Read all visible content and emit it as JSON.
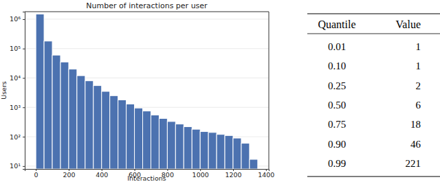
{
  "chart_data": {
    "type": "histogram",
    "title": "Number of interactions per user",
    "x_label": "Interactions",
    "y_label": "Users",
    "bins": [
      0,
      50,
      100,
      150,
      200,
      250,
      300,
      350,
      400,
      450,
      500,
      550,
      600,
      650,
      700,
      750,
      800,
      850,
      900,
      950,
      1000,
      1050,
      1100,
      1150,
      1200,
      1250,
      1300,
      1350
    ],
    "values": [
      1500000,
      180000,
      60000,
      35000,
      20000,
      12000,
      8000,
      5500,
      3500,
      2500,
      1800,
      1300,
      950,
      750,
      550,
      420,
      330,
      270,
      220,
      180,
      150,
      140,
      120,
      110,
      90,
      60,
      17
    ],
    "color": "#4c72b0",
    "xlim": [
      -67.5,
      1417.5
    ],
    "xticks": [
      0,
      200,
      400,
      600,
      800,
      1000,
      1200,
      1400
    ],
    "ylim": [
      8,
      1800000
    ],
    "yticks": [
      {
        "value": 10,
        "label": "10¹"
      },
      {
        "value": 100,
        "label": "10²"
      },
      {
        "value": 1000,
        "label": "10³"
      },
      {
        "value": 10000,
        "label": "10⁴"
      },
      {
        "value": 100000,
        "label": "10⁵"
      },
      {
        "value": 1000000,
        "label": "10⁶"
      }
    ],
    "log": "y",
    "grid": true
  },
  "table": {
    "columns": [
      "Quantile",
      "Value"
    ],
    "rows": [
      [
        "0.01",
        "1"
      ],
      [
        "0.10",
        "1"
      ],
      [
        "0.25",
        "2"
      ],
      [
        "0.50",
        "6"
      ],
      [
        "0.75",
        "18"
      ],
      [
        "0.90",
        "46"
      ],
      [
        "0.99",
        "221"
      ]
    ]
  }
}
